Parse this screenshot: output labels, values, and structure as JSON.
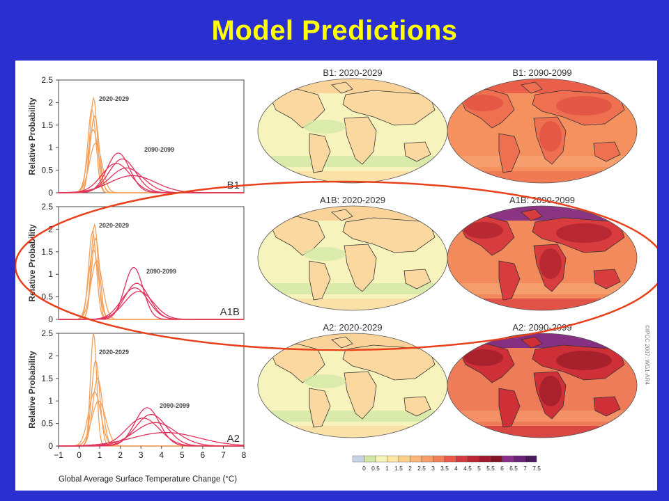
{
  "slide": {
    "title": "Model Predictions"
  },
  "copyright": "©IPCC 2007: WG1-AR4",
  "colorbar": {
    "labels": [
      "0",
      "0.5",
      "1",
      "1.5",
      "2",
      "2.5",
      "3",
      "3.5",
      "4",
      "4.5",
      "5",
      "5.5",
      "6",
      "6.5",
      "7",
      "7.5"
    ],
    "colors": [
      "#c7d3e6",
      "#d2e6a8",
      "#f5f5b8",
      "#fde6a6",
      "#fdd08a",
      "#fbb878",
      "#f79e68",
      "#f28058",
      "#ea5a4a",
      "#d63a3e",
      "#bd2434",
      "#9e1a2c",
      "#831526",
      "#8a2d8c",
      "#6b2377",
      "#4a1a5a"
    ]
  },
  "chart_data": [
    {
      "type": "line",
      "scenario": "B1",
      "xlabel": "",
      "ylabel": "Relative Probability",
      "xlim": [
        -1,
        8
      ],
      "ylim": [
        0,
        2.5
      ],
      "yticks": [
        "0",
        "0.5",
        "1",
        "1.5",
        "2",
        "2.5"
      ],
      "period_labels": [
        "2020-2029",
        "2090-2099"
      ],
      "series_2020_2029": [
        {
          "mu": 0.7,
          "peak": 2.1,
          "sigma": 0.18
        },
        {
          "mu": 0.75,
          "peak": 1.7,
          "sigma": 0.22
        },
        {
          "mu": 0.68,
          "peak": 1.4,
          "sigma": 0.26
        },
        {
          "mu": 0.8,
          "peak": 1.1,
          "sigma": 0.3
        },
        {
          "mu": 0.62,
          "peak": 1.85,
          "sigma": 0.2
        }
      ],
      "series_2090_2099": [
        {
          "mu": 1.9,
          "peak": 0.88,
          "sigma": 0.55
        },
        {
          "mu": 2.1,
          "peak": 0.75,
          "sigma": 0.65
        },
        {
          "mu": 1.8,
          "peak": 0.65,
          "sigma": 0.7
        },
        {
          "mu": 2.3,
          "peak": 0.55,
          "sigma": 0.8
        },
        {
          "mu": 2.6,
          "peak": 0.38,
          "sigma": 1.1
        }
      ],
      "map_titles": [
        "B1: 2020-2029",
        "B1: 2090-2099"
      ]
    },
    {
      "type": "line",
      "scenario": "A1B",
      "xlabel": "",
      "ylabel": "Relative Probability",
      "xlim": [
        -1,
        8
      ],
      "ylim": [
        0,
        2.5
      ],
      "yticks": [
        "0",
        "0.5",
        "1",
        "1.5",
        "2",
        "2.5"
      ],
      "period_labels": [
        "2020-2029",
        "2090-2099"
      ],
      "series_2020_2029": [
        {
          "mu": 0.75,
          "peak": 2.1,
          "sigma": 0.17
        },
        {
          "mu": 0.8,
          "peak": 1.8,
          "sigma": 0.2
        },
        {
          "mu": 0.7,
          "peak": 1.55,
          "sigma": 0.24
        },
        {
          "mu": 0.85,
          "peak": 1.3,
          "sigma": 0.28
        },
        {
          "mu": 0.65,
          "peak": 1.95,
          "sigma": 0.19
        }
      ],
      "series_2090_2099": [
        {
          "mu": 2.65,
          "peak": 1.15,
          "sigma": 0.45
        },
        {
          "mu": 2.8,
          "peak": 0.8,
          "sigma": 0.6
        },
        {
          "mu": 2.7,
          "peak": 0.7,
          "sigma": 0.65
        },
        {
          "mu": 2.9,
          "peak": 0.62,
          "sigma": 0.7
        }
      ],
      "map_titles": [
        "A1B: 2020-2029",
        "A1B: 2090-2099"
      ]
    },
    {
      "type": "line",
      "scenario": "A2",
      "xlabel": "Global Average Surface Temperature Change (°C)",
      "ylabel": "Relative Probability",
      "xlim": [
        -1,
        8
      ],
      "ylim": [
        0,
        2.5
      ],
      "xticks": [
        "−1",
        "0",
        "1",
        "2",
        "3",
        "4",
        "5",
        "6",
        "7",
        "8"
      ],
      "yticks": [
        "0",
        "0.5",
        "1",
        "1.5",
        "2",
        "2.5"
      ],
      "period_labels": [
        "2020-2029",
        "2090-2099"
      ],
      "series_2020_2029": [
        {
          "mu": 0.7,
          "peak": 2.5,
          "sigma": 0.15
        },
        {
          "mu": 0.8,
          "peak": 1.9,
          "sigma": 0.2
        },
        {
          "mu": 0.9,
          "peak": 1.5,
          "sigma": 0.24
        },
        {
          "mu": 0.75,
          "peak": 1.2,
          "sigma": 0.3
        },
        {
          "mu": 0.95,
          "peak": 1.0,
          "sigma": 0.34
        }
      ],
      "series_2090_2099": [
        {
          "mu": 3.3,
          "peak": 0.85,
          "sigma": 0.6
        },
        {
          "mu": 3.5,
          "peak": 0.7,
          "sigma": 0.75
        },
        {
          "mu": 3.1,
          "peak": 0.62,
          "sigma": 0.8
        },
        {
          "mu": 3.7,
          "peak": 0.52,
          "sigma": 1.0
        },
        {
          "mu": 4.2,
          "peak": 0.3,
          "sigma": 1.6
        }
      ],
      "map_titles": [
        "A2: 2020-2029",
        "A2: 2090-2099"
      ]
    }
  ]
}
